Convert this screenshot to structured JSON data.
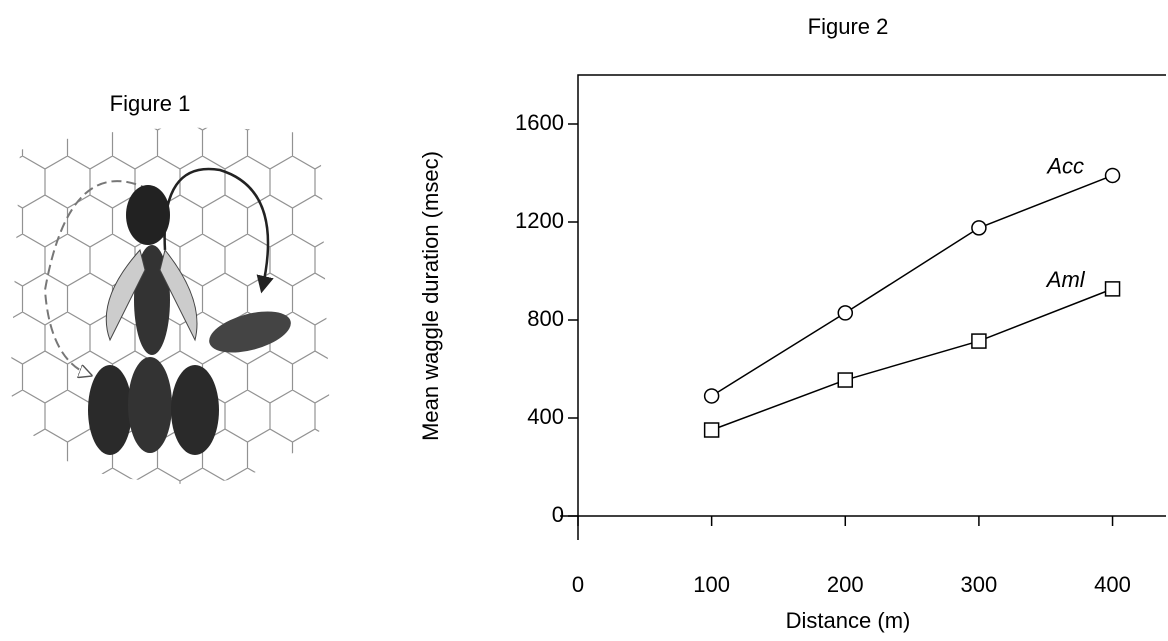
{
  "figure_1_title": "Figure 1",
  "chart_data": {
    "type": "line",
    "title": "Figure 2",
    "x_label": "Distance (m)",
    "y_label": "Mean waggle duration (msec)",
    "x": [
      100,
      200,
      300,
      400
    ],
    "series": [
      {
        "name": "Acc",
        "color": "#000000",
        "marker": "circle",
        "values": [
          490,
          829,
          1176,
          1390
        ]
      },
      {
        "name": "Aml",
        "color": "#000000",
        "marker": "square",
        "values": [
          351,
          555,
          714,
          927
        ]
      }
    ],
    "xlim": [
      0,
      440
    ],
    "ylim": [
      0,
      1800
    ],
    "xticks": [
      0,
      100,
      200,
      300,
      400
    ],
    "yticks": [
      0,
      400,
      800,
      1200,
      1600
    ]
  }
}
